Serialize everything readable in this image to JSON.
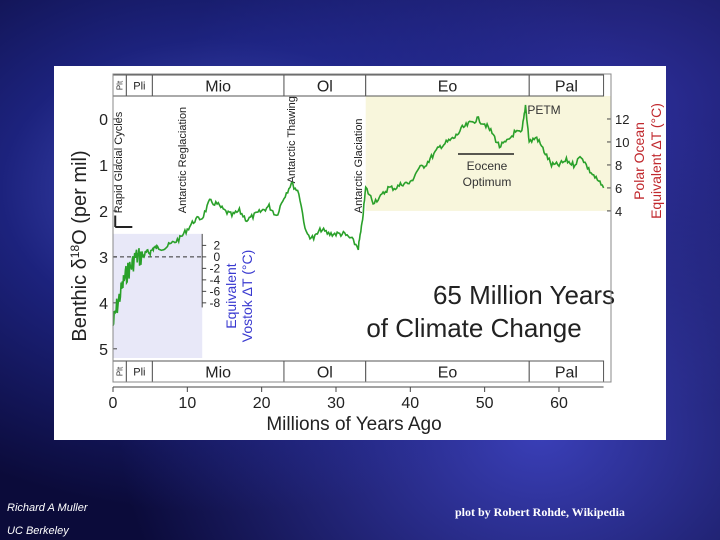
{
  "footer": {
    "author": "Richard A Muller",
    "institution": "UC Berkeley",
    "plot_credit": "plot by Robert Rohde, Wikipedia"
  },
  "chart_data": {
    "type": "line",
    "title_line1": "65 Million Years",
    "title_line2": "of Climate Change",
    "xlabel": "Millions of Years Ago",
    "ylabel_left_main": "Benthic δ",
    "ylabel_left_sup": "18",
    "ylabel_left_rest": "O (per mil)",
    "ylabel_right_line1": "Polar Ocean",
    "ylabel_right_line2": "Equivalent ΔT (°C)",
    "inset_label_line1": "Equivalent",
    "inset_label_line2": "Vostok ΔT (°C)",
    "xlim": [
      0,
      67
    ],
    "ylim": [
      5.2,
      -0.5
    ],
    "x_ticks": [
      0,
      10,
      20,
      30,
      40,
      50,
      60
    ],
    "y_ticks": [
      0,
      1,
      2,
      3,
      4,
      5
    ],
    "right_ticks": [
      {
        "label": "12",
        "d18o": 0.0
      },
      {
        "label": "10",
        "d18o": 0.5
      },
      {
        "label": "8",
        "d18o": 1.0
      },
      {
        "label": "6",
        "d18o": 1.5
      },
      {
        "label": "4",
        "d18o": 2.0
      }
    ],
    "vostok_ticks": [
      {
        "label": "2",
        "d18o": 2.75
      },
      {
        "label": "0",
        "d18o": 3.0
      },
      {
        "label": "-2",
        "d18o": 3.25
      },
      {
        "label": "-4",
        "d18o": 3.5
      },
      {
        "label": "-6",
        "d18o": 3.75
      },
      {
        "label": "-8",
        "d18o": 4.0
      }
    ],
    "epochs": [
      {
        "label": "Plt",
        "start": 0,
        "end": 1.8,
        "vertical": true
      },
      {
        "label": "Pli",
        "start": 1.8,
        "end": 5.3
      },
      {
        "label": "Mio",
        "start": 5.3,
        "end": 23
      },
      {
        "label": "Ol",
        "start": 23,
        "end": 34
      },
      {
        "label": "Eo",
        "start": 34,
        "end": 56
      },
      {
        "label": "Pal",
        "start": 56,
        "end": 66
      }
    ],
    "annotations": [
      {
        "label": "Rapid Glacial Cycles",
        "x": 1.2,
        "y": 2.05
      },
      {
        "label": "Antarctic Reglaciation",
        "x": 9.8,
        "y": 2.05
      },
      {
        "label": "Antarctic Thawing",
        "x": 24.5,
        "y": 1.4
      },
      {
        "label": "Antarctic Glaciation",
        "x": 33.5,
        "y": 2.05
      }
    ],
    "petm_label": "PETM",
    "optimum_line1": "Eocene",
    "optimum_line2": "Optimum",
    "series": [
      {
        "color": "#2aa02a",
        "x": [
          0,
          0.5,
          1,
          1.5,
          2,
          2.5,
          3,
          3.5,
          4,
          4.5,
          5,
          5.5,
          6,
          7,
          8,
          9,
          10,
          11,
          12,
          13,
          14,
          15,
          16,
          17,
          18,
          19,
          20,
          21,
          22,
          23,
          24,
          25,
          26,
          27,
          28,
          29,
          30,
          31,
          32,
          33,
          33.5,
          34,
          35,
          36,
          37,
          38,
          39,
          40,
          41,
          42,
          43,
          44,
          45,
          46,
          47,
          48,
          49,
          50,
          51,
          52,
          53,
          54,
          55,
          55.5,
          56,
          57,
          58,
          59,
          60,
          61,
          62,
          63,
          64,
          65,
          66
        ],
        "y": [
          4.5,
          4.1,
          3.8,
          3.5,
          3.3,
          3.2,
          3.0,
          3.0,
          3.0,
          2.9,
          2.9,
          2.8,
          2.8,
          2.8,
          2.7,
          2.6,
          2.4,
          2.2,
          2.15,
          1.8,
          1.85,
          2.0,
          2.1,
          2.0,
          2.2,
          2.1,
          2.0,
          1.9,
          2.1,
          1.7,
          1.4,
          1.6,
          2.5,
          2.6,
          2.4,
          2.5,
          2.5,
          2.5,
          2.6,
          2.8,
          2.3,
          1.5,
          1.8,
          1.7,
          1.5,
          1.5,
          1.4,
          1.4,
          1.1,
          1.0,
          0.8,
          0.6,
          0.5,
          0.4,
          0.2,
          0.1,
          0.0,
          0.1,
          0.3,
          0.6,
          0.5,
          0.3,
          0.3,
          -0.3,
          0.5,
          0.4,
          0.7,
          1.0,
          1.0,
          0.9,
          1.0,
          0.8,
          1.1,
          1.3,
          1.5
        ]
      }
    ]
  }
}
